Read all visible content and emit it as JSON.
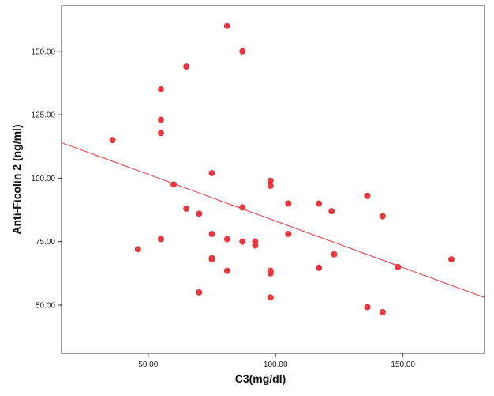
{
  "chart_data": {
    "type": "scatter",
    "title": "",
    "xlabel": "C3(mg/dl)",
    "ylabel": "Anti-Ficolin 2 (ng/ml)",
    "xlim": [
      16,
      182
    ],
    "ylim": [
      31,
      168
    ],
    "x_ticks": [
      {
        "value": 50,
        "label": "50.00"
      },
      {
        "value": 100,
        "label": "100.00"
      },
      {
        "value": 150,
        "label": "150.00"
      }
    ],
    "y_ticks": [
      {
        "value": 50,
        "label": "50.00"
      },
      {
        "value": 75,
        "label": "75.00"
      },
      {
        "value": 100,
        "label": "100.00"
      },
      {
        "value": 125,
        "label": "125.00"
      },
      {
        "value": 150,
        "label": "150.00"
      }
    ],
    "grid": false,
    "legend": false,
    "colors": {
      "points": "#e8373f",
      "fit_line": "#e8373f",
      "axes": "#333333"
    },
    "series": [
      {
        "points": [
          [
            36,
            115
          ],
          [
            46,
            72
          ],
          [
            55,
            135
          ],
          [
            55,
            123
          ],
          [
            55,
            117.8
          ],
          [
            55,
            76
          ],
          [
            60,
            97.5
          ],
          [
            65,
            144
          ],
          [
            65,
            88
          ],
          [
            70,
            86
          ],
          [
            70,
            55
          ],
          [
            75,
            102
          ],
          [
            75,
            78
          ],
          [
            75,
            68.5
          ],
          [
            75,
            68
          ],
          [
            81,
            160
          ],
          [
            81,
            76
          ],
          [
            81,
            63.5
          ],
          [
            87,
            150
          ],
          [
            87,
            88.5
          ],
          [
            87,
            75
          ],
          [
            92,
            75
          ],
          [
            92,
            73.5
          ],
          [
            98,
            99
          ],
          [
            98,
            97
          ],
          [
            98,
            63.5
          ],
          [
            98,
            62.5
          ],
          [
            98,
            53
          ],
          [
            105,
            90
          ],
          [
            105,
            78
          ],
          [
            117,
            90
          ],
          [
            117,
            64.7
          ],
          [
            122,
            87
          ],
          [
            123,
            70
          ],
          [
            136,
            93
          ],
          [
            136,
            49.2
          ],
          [
            142,
            85
          ],
          [
            142,
            47.2
          ],
          [
            148,
            65
          ],
          [
            169,
            68
          ]
        ]
      }
    ],
    "fit_line": {
      "x": [
        16,
        182
      ],
      "y": [
        114,
        53
      ]
    }
  }
}
